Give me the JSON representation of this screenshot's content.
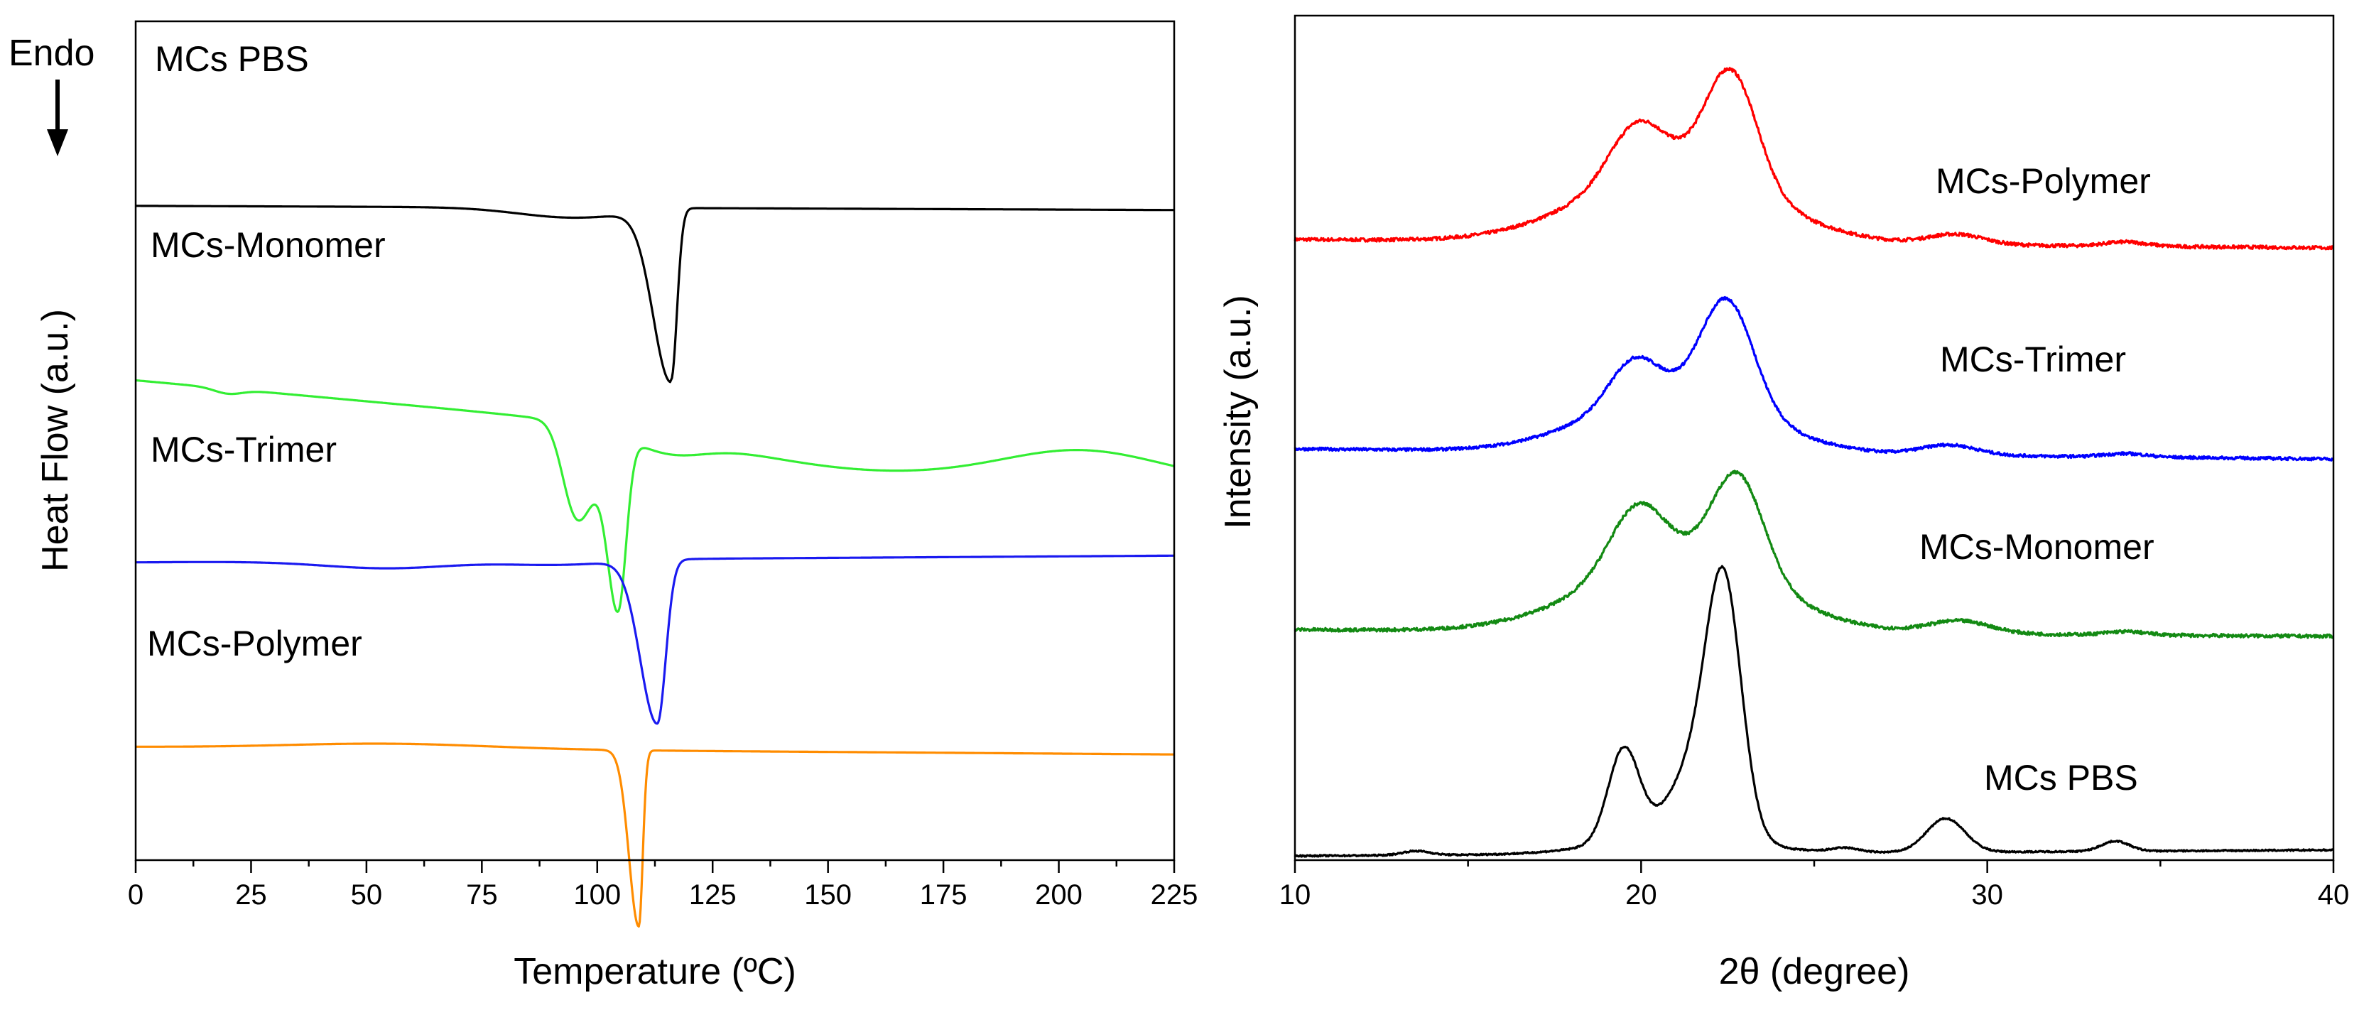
{
  "chart_data": [
    {
      "id": "dsc",
      "type": "line",
      "title": "",
      "xlabel": "Temperature (ºC)",
      "ylabel": "Heat Flow (a.u.)",
      "annotation": "Endo",
      "xlim": [
        0,
        225
      ],
      "xticks": [
        "0",
        "25",
        "50",
        "75",
        "100",
        "125",
        "150",
        "175",
        "200",
        "225"
      ],
      "yticks": [],
      "series": [
        {
          "name": "MCs PBS",
          "color": "#000000",
          "baseline": 0.78,
          "peak_x": 116,
          "peak_depth": 0.205,
          "peak_width": 5.5
        },
        {
          "name": "MCs-Monomer",
          "color": "#33ee33",
          "baseline": 0.57,
          "peak_x": 104.5,
          "peak_depth": 0.2,
          "peak_width": 5.0,
          "shoulder_x": 95
        },
        {
          "name": "MCs-Trimer",
          "color": "#1a1af0",
          "baseline": 0.355,
          "peak_x": 113,
          "peak_depth": 0.195,
          "peak_width": 5.5
        },
        {
          "name": "MCs-Polymer",
          "color": "#ff8c00",
          "baseline": 0.135,
          "peak_x": 109,
          "peak_depth": 0.21,
          "peak_width": 3.0
        }
      ]
    },
    {
      "id": "xrd",
      "type": "line",
      "title": "",
      "xlabel": "2θ (degree)",
      "ylabel": "Intensity (a.u.)",
      "xlim": [
        10,
        40
      ],
      "xticks": [
        "10",
        "20",
        "30",
        "40"
      ],
      "yticks": [],
      "peaks_2theta": [
        19.8,
        22.6,
        29.0
      ],
      "series": [
        {
          "name": "MCs-Polymer",
          "color": "#ff0000",
          "offset": 0.725
        },
        {
          "name": "MCs-Trimer",
          "color": "#0000ff",
          "offset": 0.475
        },
        {
          "name": "MCs-Monomer",
          "color": "#138a13",
          "offset": 0.265
        },
        {
          "name": "MCs PBS",
          "color": "#000000",
          "offset": 0.005
        }
      ]
    }
  ]
}
